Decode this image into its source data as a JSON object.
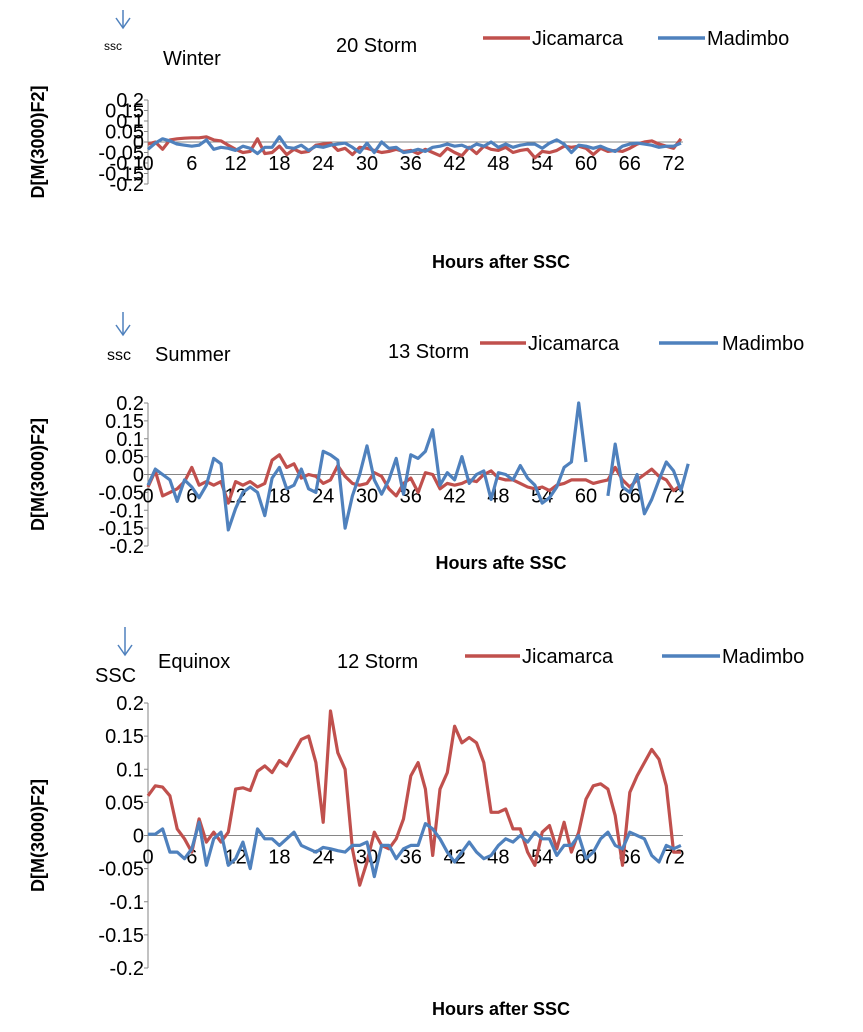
{
  "chart_data": [
    {
      "type": "line",
      "season": "Winter",
      "storm_label": "20 Storm",
      "ssc_marker": "ssc",
      "xlabel": "Hours after SSC",
      "ylabel": "D[M(3000)F2]",
      "xlim": [
        0,
        73
      ],
      "ylim": [
        -0.2,
        0.2
      ],
      "x_ticks": [
        "0",
        "6",
        "12",
        "18",
        "24",
        "30",
        "36",
        "42",
        "48",
        "54",
        "60",
        "66",
        "72"
      ],
      "y_ticks": [
        "0.2",
        "0.15",
        "0.1",
        "0.05",
        "0",
        "-0.05",
        "-0.1",
        "-0.15",
        "-0.2"
      ],
      "legend": [
        "Jicamarca",
        "Madimbo"
      ],
      "series": [
        {
          "name": "Jicamarca",
          "color": "#c0504d",
          "values": [
            -0.01,
            0,
            -0.035,
            0.01,
            0.015,
            0.018,
            0.02,
            0.02,
            0.025,
            0.01,
            0.005,
            -0.015,
            -0.035,
            -0.05,
            -0.045,
            0.015,
            -0.055,
            -0.05,
            -0.02,
            -0.06,
            -0.035,
            -0.05,
            -0.045,
            -0.015,
            -0.01,
            -0.005,
            -0.04,
            -0.03,
            -0.06,
            -0.025,
            -0.03,
            -0.04,
            -0.05,
            -0.045,
            -0.035,
            -0.045,
            -0.04,
            -0.055,
            -0.035,
            -0.05,
            -0.065,
            -0.03,
            -0.05,
            -0.065,
            -0.025,
            -0.055,
            -0.02,
            -0.035,
            -0.04,
            -0.025,
            -0.05,
            -0.04,
            -0.035,
            -0.075,
            -0.045,
            -0.05,
            -0.04,
            -0.02,
            -0.025,
            -0.02,
            -0.03,
            -0.06,
            -0.03,
            -0.045,
            -0.04,
            -0.045,
            -0.03,
            -0.01,
            0,
            0.005,
            -0.01,
            -0.02,
            -0.03,
            0.015
          ]
        },
        {
          "name": "Madimbo",
          "color": "#4f81bd",
          "values": [
            -0.035,
            -0.005,
            0.015,
            0.005,
            -0.01,
            -0.015,
            -0.02,
            -0.015,
            0.01,
            -0.035,
            -0.025,
            -0.03,
            -0.04,
            -0.02,
            -0.03,
            -0.055,
            -0.025,
            -0.025,
            0.025,
            -0.025,
            -0.03,
            -0.015,
            -0.04,
            -0.02,
            -0.025,
            -0.015,
            -0.01,
            -0.005,
            -0.025,
            -0.05,
            -0.005,
            -0.05,
            0,
            -0.03,
            -0.025,
            -0.05,
            -0.045,
            -0.035,
            -0.045,
            -0.025,
            -0.02,
            -0.01,
            -0.02,
            -0.015,
            -0.03,
            -0.01,
            -0.02,
            0,
            -0.025,
            -0.01,
            -0.025,
            -0.015,
            -0.01,
            -0.01,
            -0.03,
            -0.005,
            0.01,
            -0.01,
            -0.05,
            -0.015,
            -0.02,
            -0.03,
            -0.02,
            -0.035,
            -0.045,
            -0.02,
            -0.01,
            -0.005,
            -0.01,
            -0.015,
            -0.025,
            -0.02,
            -0.02,
            -0.005
          ]
        }
      ]
    },
    {
      "type": "line",
      "season": "Summer",
      "storm_label": "13 Storm",
      "ssc_marker": "ssc",
      "xlabel": "Hours afte SSC",
      "ylabel": "D[M(3000)F2]",
      "xlim": [
        0,
        73
      ],
      "ylim": [
        -0.2,
        0.2
      ],
      "x_ticks": [
        "0",
        "6",
        "12",
        "18",
        "24",
        "30",
        "36",
        "42",
        "48",
        "54",
        "60",
        "66",
        "72"
      ],
      "y_ticks": [
        "0.2",
        "0.15",
        "0.1",
        "0.05",
        "0",
        "-0.05",
        "-0.1",
        "-0.15",
        "-0.2"
      ],
      "legend": [
        "Jicamarca",
        "Madimbo"
      ],
      "series": [
        {
          "name": "Jicamarca",
          "color": "#c0504d",
          "values": [
            -0.035,
            0.01,
            -0.06,
            -0.05,
            -0.04,
            -0.02,
            0.02,
            -0.03,
            -0.02,
            -0.03,
            -0.02,
            -0.08,
            -0.02,
            -0.03,
            -0.02,
            -0.035,
            -0.025,
            0.04,
            0.055,
            0.02,
            0.03,
            -0.01,
            0,
            -0.005,
            -0.025,
            -0.015,
            0.025,
            -0.005,
            -0.025,
            -0.03,
            -0.025,
            0.005,
            -0.005,
            -0.04,
            -0.06,
            -0.025,
            -0.01,
            -0.05,
            0.005,
            0,
            -0.04,
            -0.025,
            -0.03,
            -0.025,
            -0.015,
            -0.02,
            0,
            0.01,
            -0.01,
            -0.015,
            -0.015,
            -0.025,
            -0.035,
            -0.04,
            -0.035,
            -0.045,
            -0.03,
            -0.025,
            -0.015,
            -0.015,
            -0.015,
            -0.025,
            -0.02,
            -0.015,
            0.02,
            -0.015,
            -0.035,
            -0.015,
            0,
            0.015,
            -0.005,
            -0.015,
            -0.045,
            -0.03
          ]
        },
        {
          "name": "Madimbo",
          "color": "#4f81bd",
          "values": [
            -0.03,
            0.015,
            0,
            -0.015,
            -0.075,
            -0.015,
            -0.035,
            -0.065,
            -0.03,
            0.045,
            0.03,
            -0.155,
            -0.095,
            -0.05,
            -0.035,
            -0.05,
            -0.115,
            -0.01,
            0.02,
            -0.04,
            -0.03,
            0.015,
            -0.04,
            -0.05,
            0.065,
            0.055,
            0.04,
            -0.15,
            -0.06,
            0,
            0.08,
            -0.015,
            -0.055,
            -0.015,
            0.045,
            -0.055,
            0.055,
            0.045,
            0.065,
            0.125,
            -0.03,
            0.005,
            -0.015,
            0.05,
            -0.025,
            0,
            0.01,
            -0.07,
            0.005,
            0,
            -0.015,
            0.025,
            -0.01,
            -0.03,
            -0.08,
            -0.065,
            -0.035,
            0.02,
            0.035,
            0.2,
            0.035,
            null,
            null,
            -0.06,
            0.085,
            -0.035,
            -0.05,
            0,
            -0.11,
            -0.07,
            -0.015,
            0.035,
            0.01,
            -0.045,
            0.03
          ]
        }
      ]
    },
    {
      "type": "line",
      "season": "Equinox",
      "storm_label": "12 Storm",
      "ssc_marker": "SSC",
      "xlabel": "Hours after SSC",
      "ylabel": "D[M(3000)F2]",
      "xlim": [
        0,
        73
      ],
      "ylim": [
        -0.2,
        0.2
      ],
      "x_ticks": [
        "0",
        "6",
        "12",
        "18",
        "24",
        "30",
        "36",
        "42",
        "48",
        "54",
        "60",
        "66",
        "72"
      ],
      "y_ticks": [
        "0.2",
        "0.15",
        "0.1",
        "0.05",
        "0",
        "-0.05",
        "-0.1",
        "-0.15",
        "-0.2"
      ],
      "legend": [
        "Jicamarca",
        "Madimbo"
      ],
      "series": [
        {
          "name": "Jicamarca",
          "color": "#c0504d",
          "values": [
            0.06,
            0.075,
            0.073,
            0.06,
            0.01,
            -0.005,
            -0.025,
            0.025,
            -0.01,
            0.005,
            -0.01,
            0.005,
            0.07,
            0.072,
            0.068,
            0.097,
            0.105,
            0.095,
            0.113,
            0.105,
            0.125,
            0.145,
            0.15,
            0.11,
            0.02,
            0.188,
            0.125,
            0.1,
            -0.02,
            -0.075,
            -0.04,
            0.005,
            -0.015,
            -0.02,
            -0.005,
            0.025,
            0.09,
            0.11,
            0.07,
            -0.03,
            0.07,
            0.095,
            0.165,
            0.14,
            0.148,
            0.14,
            0.11,
            0.035,
            0.035,
            0.04,
            0.01,
            0.01,
            -0.025,
            -0.045,
            0.005,
            0.015,
            -0.02,
            0.02,
            -0.025,
            0.005,
            0.055,
            0.075,
            0.078,
            0.07,
            0.03,
            -0.045,
            0.065,
            0.09,
            0.11,
            0.13,
            0.115,
            0.075,
            -0.025,
            -0.025
          ]
        },
        {
          "name": "Madimbo",
          "color": "#4f81bd",
          "values": [
            0.002,
            0.002,
            0.01,
            -0.025,
            -0.025,
            -0.035,
            -0.02,
            0.02,
            -0.045,
            -0.005,
            0.005,
            -0.045,
            -0.035,
            -0.01,
            -0.05,
            0.01,
            -0.005,
            -0.005,
            -0.015,
            -0.005,
            0.005,
            -0.015,
            -0.02,
            -0.025,
            -0.018,
            -0.02,
            -0.023,
            -0.025,
            -0.015,
            -0.015,
            -0.01,
            -0.062,
            -0.015,
            -0.015,
            -0.035,
            -0.02,
            -0.015,
            -0.015,
            0.018,
            0.01,
            -0.005,
            -0.025,
            -0.04,
            -0.025,
            -0.01,
            -0.025,
            -0.035,
            -0.03,
            -0.015,
            -0.005,
            -0.01,
            0,
            -0.01,
            0.005,
            -0.005,
            -0.005,
            -0.03,
            -0.015,
            -0.015,
            0,
            -0.035,
            -0.025,
            -0.005,
            0.005,
            -0.015,
            -0.02,
            0.005,
            0,
            -0.005,
            -0.03,
            -0.04,
            -0.015,
            -0.02,
            -0.015
          ]
        }
      ]
    }
  ]
}
